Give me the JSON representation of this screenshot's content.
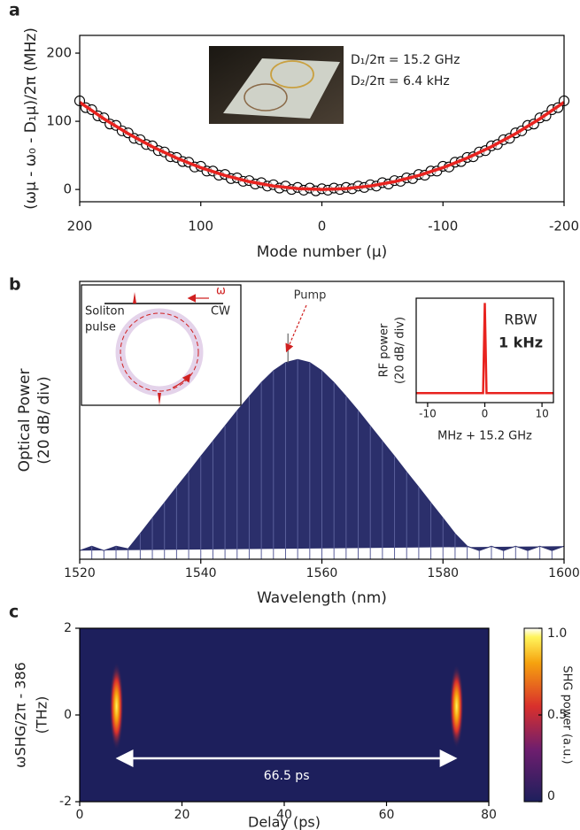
{
  "chart_data": [
    {
      "type": "scatter",
      "panel_label": "a",
      "xlabel": "Mode number (μ)",
      "ylabel": "(ωμ - ω₀ - D₁μ)/2π (MHz)",
      "xlim": [
        200,
        -200
      ],
      "xticks": [
        200,
        100,
        0,
        -100,
        -200
      ],
      "ylim": [
        -18,
        226
      ],
      "yticks": [
        0,
        100,
        200
      ],
      "annotations": [
        "D₁/2π = 15.2 GHz",
        "D₂/2π = 6.4 kHz"
      ],
      "color": "#000000",
      "x": [
        200,
        195,
        190,
        185,
        180,
        175,
        170,
        165,
        160,
        155,
        150,
        145,
        140,
        135,
        130,
        125,
        120,
        115,
        110,
        105,
        100,
        95,
        90,
        85,
        80,
        75,
        70,
        65,
        60,
        55,
        50,
        45,
        40,
        35,
        30,
        25,
        20,
        15,
        10,
        5,
        0,
        -5,
        -10,
        -15,
        -20,
        -25,
        -30,
        -35,
        -40,
        -45,
        -50,
        -55,
        -60,
        -65,
        -70,
        -75,
        -80,
        -85,
        -90,
        -95,
        -100,
        -105,
        -110,
        -115,
        -120,
        -125,
        -130,
        -135,
        -140,
        -145,
        -150,
        -155,
        -160,
        -165,
        -170,
        -175,
        -180,
        -185,
        -190,
        -195,
        -200
      ],
      "values": [
        130,
        120,
        117,
        108,
        105,
        96,
        94,
        86,
        83,
        75,
        73,
        66,
        64,
        57,
        55,
        48,
        47,
        41,
        40,
        33,
        34,
        27,
        27,
        21,
        22,
        16,
        17,
        12,
        13,
        8,
        10,
        5,
        7,
        2,
        5,
        0,
        3,
        -1,
        2,
        -2,
        1,
        -1,
        2,
        0,
        3,
        1,
        5,
        3,
        7,
        5,
        10,
        8,
        13,
        12,
        17,
        16,
        22,
        21,
        27,
        27,
        34,
        33,
        40,
        41,
        47,
        48,
        55,
        57,
        64,
        66,
        73,
        75,
        83,
        86,
        94,
        96,
        105,
        108,
        117,
        120,
        130
      ],
      "fit": {
        "color": "#e8231f",
        "x": [
          200,
          180,
          160,
          140,
          120,
          100,
          80,
          60,
          40,
          20,
          0,
          -20,
          -40,
          -60,
          -80,
          -100,
          -120,
          -140,
          -160,
          -180,
          -200
        ],
        "values": [
          128,
          103.7,
          81.9,
          62.7,
          46.1,
          32,
          20.5,
          11.5,
          5.1,
          1.3,
          0,
          1.3,
          5.1,
          11.5,
          20.5,
          32,
          46.1,
          62.7,
          81.9,
          103.7,
          128
        ]
      }
    },
    {
      "type": "spectrum",
      "panel_label": "b",
      "xlabel": "Wavelength (nm)",
      "ylabel": [
        "Optical Power",
        "(20 dB/ div)"
      ],
      "xlim": [
        1520,
        1600
      ],
      "xticks": [
        1520,
        1540,
        1560,
        1580,
        1600
      ],
      "ylim": [
        -64,
        0
      ],
      "color": "#2b2f6b",
      "annotations": [
        "Pump",
        "Soliton",
        "pulse",
        "CW",
        "ω"
      ],
      "x": [
        1520,
        1522,
        1524,
        1526,
        1528,
        1530,
        1532,
        1534,
        1536,
        1538,
        1540,
        1542,
        1544,
        1546,
        1548,
        1550,
        1552,
        1554,
        1556,
        1558,
        1560,
        1562,
        1564,
        1566,
        1568,
        1570,
        1572,
        1574,
        1576,
        1578,
        1580,
        1582,
        1584,
        1586,
        1588,
        1590,
        1592,
        1594,
        1596,
        1598,
        1600
      ],
      "values": [
        -62,
        -61,
        -62,
        -61,
        -61.6,
        -58.1,
        -54.5,
        -51,
        -47.4,
        -43.9,
        -40.3,
        -36.8,
        -33.3,
        -29.8,
        -26.5,
        -23.3,
        -20.6,
        -18.7,
        -18,
        -18.7,
        -20.6,
        -23.3,
        -26.5,
        -29.8,
        -33.3,
        -36.8,
        -40.3,
        -43.9,
        -47.4,
        -51,
        -54.5,
        -58.1,
        -61,
        -62,
        -61,
        -62,
        -61,
        -62,
        -61,
        -62,
        -61
      ],
      "pump": {
        "x": 1554.4,
        "value": -12,
        "color": "#666666"
      }
    },
    {
      "type": "line",
      "xlabel": "MHz + 15.2 GHz",
      "ylabel": [
        "RF power",
        "(20 dB/ div)"
      ],
      "xlim": [
        -12,
        12
      ],
      "xticks": [
        -10,
        0,
        10
      ],
      "ylim": [
        -110,
        0
      ],
      "color": "#e8231f",
      "annotations": [
        "RBW",
        "1 kHz"
      ],
      "x": [
        -12,
        -0.3,
        0,
        0.3,
        12
      ],
      "values": [
        -100,
        -100,
        -5,
        -100,
        -100
      ]
    },
    {
      "type": "heatmap",
      "panel_label": "c",
      "xlabel": "Delay (ps)",
      "ylabel": [
        "ωSHG/2π - 386",
        "(THz)"
      ],
      "xlim": [
        0,
        80
      ],
      "xticks": [
        0,
        20,
        40,
        60,
        80
      ],
      "ylim": [
        -2,
        2
      ],
      "yticks": [
        2,
        0,
        -2
      ],
      "zlim": [
        0,
        1
      ],
      "zticks": [
        0,
        0.5,
        {
          "value": 1,
          "label": "1.0"
        }
      ],
      "zlabel": "SHG power (a.u.)",
      "background": "#1d1f5c",
      "x": [
        7.2,
        73.7
      ],
      "y": [
        0.2,
        0.2
      ],
      "values": [
        1,
        0.95
      ],
      "arrow": {
        "x": [
          7.2,
          73.7
        ],
        "y": -1,
        "label": "66.5 ps",
        "color": "#ffffff"
      }
    }
  ]
}
